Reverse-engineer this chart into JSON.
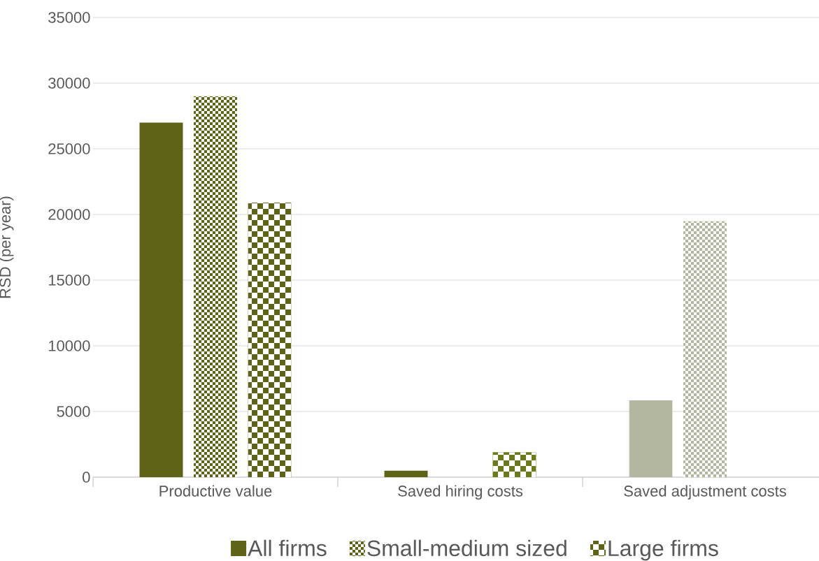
{
  "chart_data": {
    "type": "bar",
    "ylabel": "RSD (per year)",
    "categories": [
      "Productive value",
      "Saved hiring costs",
      "Saved adjustment costs"
    ],
    "series": [
      {
        "name": "All firms",
        "colors": [
          "#5f6318",
          "#5f6318",
          "#b4b79f"
        ],
        "values": [
          27000,
          500,
          5850
        ]
      },
      {
        "name": "Small-medium sized",
        "colors": [
          "#5f6318",
          "#5f6318",
          "#b4b79f"
        ],
        "values": [
          29000,
          null,
          19500
        ]
      },
      {
        "name": "Large firms",
        "colors": [
          "#5f6318",
          "#6b7a1a",
          "#b4b79f"
        ],
        "values": [
          20900,
          1900,
          null
        ]
      }
    ],
    "ylim": [
      0,
      35000
    ],
    "yticks": [
      0,
      5000,
      10000,
      15000,
      20000,
      25000,
      30000,
      35000
    ],
    "grid": "y",
    "legend": "bottom"
  }
}
